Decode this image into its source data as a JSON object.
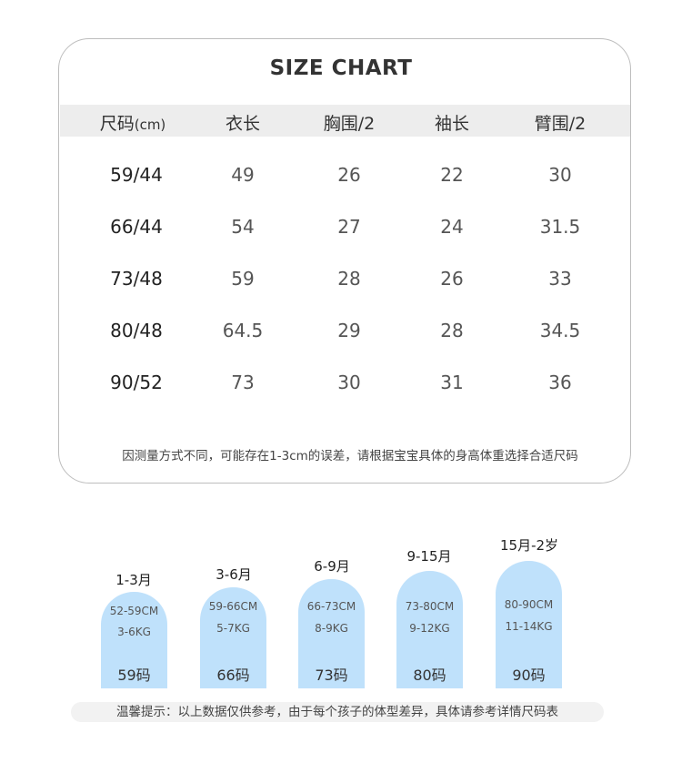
{
  "title": "SIZE CHART",
  "headers": [
    "尺码",
    "(cm)",
    "衣长",
    "胸围/2",
    "袖长",
    "臂围/2"
  ],
  "rows": [
    [
      "59/44",
      "49",
      "26",
      "22",
      "30"
    ],
    [
      "66/44",
      "54",
      "27",
      "24",
      "31.5"
    ],
    [
      "73/48",
      "59",
      "28",
      "26",
      "33"
    ],
    [
      "80/48",
      "64.5",
      "29",
      "28",
      "34.5"
    ],
    [
      "90/52",
      "73",
      "30",
      "31",
      "36"
    ]
  ],
  "note": "因测量方式不同，可能存在1-3cm的误差，请根据宝宝具体的身高体重选择合适尺码",
  "bars": [
    {
      "age": "1-3月",
      "height": "52-59CM",
      "weight": "3-6KG",
      "size": "59码"
    },
    {
      "age": "3-6月",
      "height": "59-66CM",
      "weight": "5-7KG",
      "size": "66码"
    },
    {
      "age": "6-9月",
      "height": "66-73CM",
      "weight": "8-9KG",
      "size": "73码"
    },
    {
      "age": "9-15月",
      "height": "73-80CM",
      "weight": "9-12KG",
      "size": "80码"
    },
    {
      "age": "15月-2岁",
      "height": "80-90CM",
      "weight": "11-14KG",
      "size": "90码"
    }
  ],
  "tip": "温馨提示：以上数据仅供参考，由于每个孩子的体型差异，具体请参考详情尺码表",
  "colors": {
    "bar": "#bfe1fb",
    "header_bg": "#ededed",
    "border": "#bdbdbd"
  }
}
